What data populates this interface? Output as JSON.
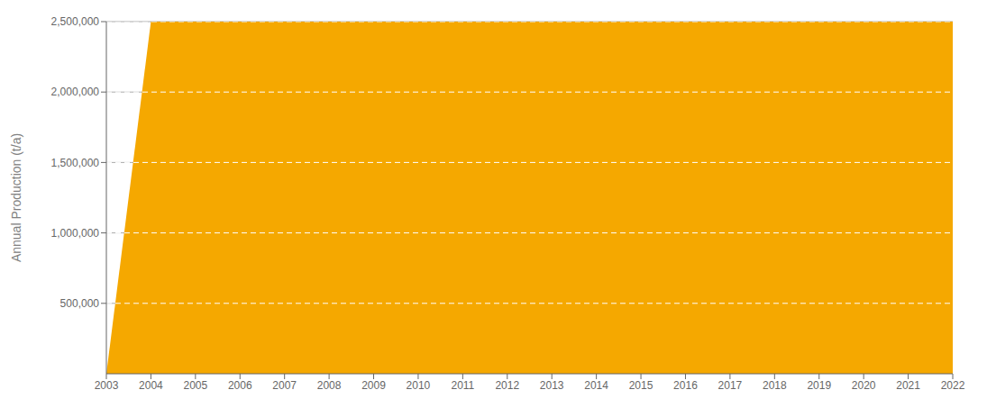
{
  "chart_data": {
    "type": "area",
    "ylabel": "Annual Production (t/a)",
    "x": [
      2003,
      2004,
      2005,
      2006,
      2007,
      2008,
      2009,
      2010,
      2011,
      2012,
      2013,
      2014,
      2015,
      2016,
      2017,
      2018,
      2019,
      2020,
      2021,
      2022
    ],
    "values": [
      0,
      2500000,
      2500000,
      2500000,
      2500000,
      2500000,
      2500000,
      2500000,
      2500000,
      2500000,
      2500000,
      2500000,
      2500000,
      2500000,
      2500000,
      2500000,
      2500000,
      2500000,
      2500000,
      2500000
    ],
    "color": "#F5A800",
    "xlim": [
      2003,
      2022
    ],
    "xticks": [
      2003,
      2004,
      2005,
      2006,
      2007,
      2008,
      2009,
      2010,
      2011,
      2012,
      2013,
      2014,
      2015,
      2016,
      2017,
      2018,
      2019,
      2020,
      2021,
      2022
    ],
    "ylim": [
      0,
      2500000
    ],
    "yticks": [
      {
        "value": 500000,
        "label": "500,000"
      },
      {
        "value": 1000000,
        "label": "1,000,000"
      },
      {
        "value": 1500000,
        "label": "1,500,000"
      },
      {
        "value": 2000000,
        "label": "2,000,000"
      },
      {
        "value": 2500000,
        "label": "2,500,000"
      }
    ],
    "grid": true
  }
}
